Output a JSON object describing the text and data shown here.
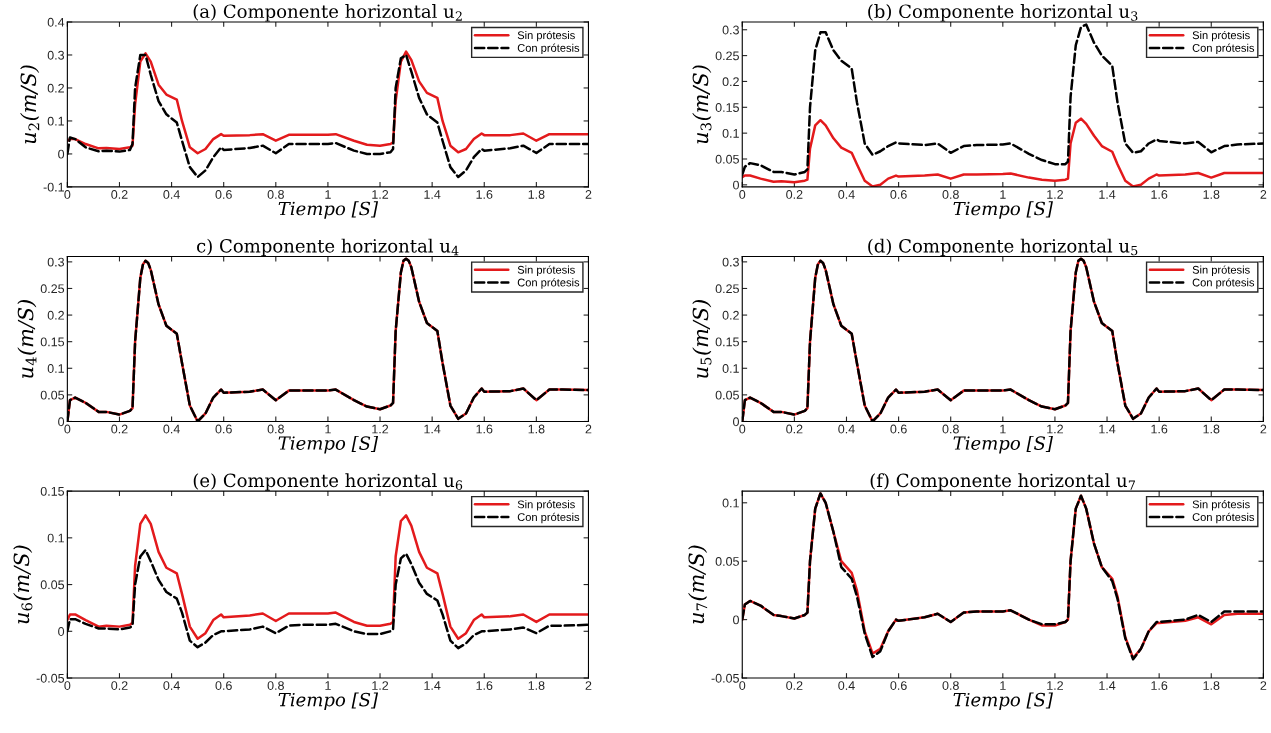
{
  "chart_data": [
    {
      "type": "line",
      "title": "(a) Componente horizontal u$_{2}$",
      "xlabel": "Tiempo [S]",
      "ylabel": "u$_{2}$(m/S)",
      "legend": "top right",
      "xlim": [
        0,
        2
      ],
      "ylim": [
        -0.1,
        0.4
      ],
      "xticks": [
        0,
        0.2,
        0.4,
        0.6,
        0.8,
        1,
        1.2,
        1.4,
        1.6,
        1.8,
        2
      ],
      "yticks": [
        -0.1,
        0,
        0.1,
        0.2,
        0.3,
        0.4
      ],
      "x": [
        0,
        0.01,
        0.03,
        0.07,
        0.12,
        0.15,
        0.2,
        0.24,
        0.25,
        0.26,
        0.28,
        0.3,
        0.32,
        0.35,
        0.38,
        0.42,
        0.44,
        0.47,
        0.5,
        0.53,
        0.56,
        0.59,
        0.6,
        0.7,
        0.75,
        0.8,
        0.85,
        0.9,
        1.0,
        1.03,
        1.1,
        1.15,
        1.2,
        1.24,
        1.25,
        1.26,
        1.28,
        1.3,
        1.32,
        1.35,
        1.38,
        1.42,
        1.44,
        1.47,
        1.5,
        1.53,
        1.56,
        1.59,
        1.6,
        1.7,
        1.75,
        1.8,
        1.85,
        1.9,
        2.0
      ],
      "series": [
        {
          "name": "Sin prótesis",
          "color": "#e31a1c",
          "line_style": "solid",
          "values": [
            0.04,
            0.045,
            0.045,
            0.03,
            0.017,
            0.018,
            0.015,
            0.02,
            0.025,
            0.15,
            0.28,
            0.305,
            0.28,
            0.21,
            0.18,
            0.165,
            0.1,
            0.02,
            0.002,
            0.015,
            0.045,
            0.06,
            0.055,
            0.057,
            0.06,
            0.04,
            0.058,
            0.058,
            0.058,
            0.06,
            0.04,
            0.028,
            0.025,
            0.03,
            0.035,
            0.16,
            0.28,
            0.31,
            0.285,
            0.22,
            0.185,
            0.17,
            0.1,
            0.025,
            0.005,
            0.015,
            0.045,
            0.062,
            0.057,
            0.057,
            0.062,
            0.04,
            0.06,
            0.06,
            0.06
          ]
        },
        {
          "name": "Con prótesis",
          "color": "#000000",
          "line_style": "dashed",
          "values": [
            0.0,
            0.05,
            0.045,
            0.02,
            0.008,
            0.01,
            0.007,
            0.012,
            0.03,
            0.2,
            0.3,
            0.3,
            0.24,
            0.16,
            0.12,
            0.095,
            0.04,
            -0.04,
            -0.07,
            -0.05,
            -0.01,
            0.02,
            0.012,
            0.018,
            0.025,
            0.002,
            0.03,
            0.03,
            0.03,
            0.033,
            0.01,
            0.0,
            0.0,
            0.005,
            0.015,
            0.2,
            0.29,
            0.3,
            0.25,
            0.17,
            0.12,
            0.095,
            0.04,
            -0.04,
            -0.07,
            -0.05,
            -0.01,
            0.015,
            0.01,
            0.017,
            0.025,
            0.003,
            0.03,
            0.03,
            0.03
          ]
        }
      ]
    },
    {
      "type": "line",
      "title": "(b) Componente horizontal u$_{3}$",
      "xlabel": "Tiempo [S]",
      "ylabel": "u$_{3}$(m/S)",
      "legend": "top right",
      "xlim": [
        0,
        2
      ],
      "ylim": [
        -0.004,
        0.315
      ],
      "xticks": [
        0,
        0.2,
        0.4,
        0.6,
        0.8,
        1,
        1.2,
        1.4,
        1.6,
        1.8,
        2
      ],
      "yticks": [
        0,
        0.05,
        0.1,
        0.15,
        0.2,
        0.25,
        0.3
      ],
      "x": [
        0,
        0.01,
        0.03,
        0.07,
        0.12,
        0.15,
        0.2,
        0.24,
        0.25,
        0.26,
        0.28,
        0.3,
        0.32,
        0.35,
        0.38,
        0.42,
        0.44,
        0.47,
        0.5,
        0.53,
        0.56,
        0.59,
        0.6,
        0.7,
        0.75,
        0.8,
        0.85,
        0.9,
        1.0,
        1.03,
        1.1,
        1.15,
        1.2,
        1.24,
        1.25,
        1.26,
        1.28,
        1.3,
        1.32,
        1.35,
        1.38,
        1.42,
        1.44,
        1.47,
        1.5,
        1.53,
        1.56,
        1.59,
        1.6,
        1.7,
        1.75,
        1.8,
        1.85,
        1.9,
        2.0
      ],
      "series": [
        {
          "name": "Sin prótesis",
          "color": "#e31a1c",
          "line_style": "solid",
          "values": [
            0.015,
            0.018,
            0.018,
            0.012,
            0.006,
            0.007,
            0.005,
            0.008,
            0.01,
            0.07,
            0.115,
            0.125,
            0.115,
            0.09,
            0.072,
            0.062,
            0.04,
            0.008,
            -0.003,
            0.0,
            0.012,
            0.018,
            0.016,
            0.018,
            0.02,
            0.012,
            0.02,
            0.02,
            0.021,
            0.022,
            0.014,
            0.01,
            0.008,
            0.01,
            0.012,
            0.08,
            0.12,
            0.128,
            0.118,
            0.095,
            0.075,
            0.064,
            0.04,
            0.008,
            -0.003,
            0.0,
            0.012,
            0.02,
            0.018,
            0.02,
            0.023,
            0.014,
            0.023,
            0.023,
            0.023
          ]
        },
        {
          "name": "Con prótesis",
          "color": "#000000",
          "line_style": "dashed",
          "values": [
            0.02,
            0.035,
            0.042,
            0.038,
            0.025,
            0.025,
            0.02,
            0.025,
            0.03,
            0.15,
            0.26,
            0.295,
            0.295,
            0.26,
            0.24,
            0.225,
            0.16,
            0.08,
            0.058,
            0.065,
            0.075,
            0.082,
            0.08,
            0.077,
            0.08,
            0.062,
            0.075,
            0.077,
            0.078,
            0.08,
            0.06,
            0.048,
            0.04,
            0.04,
            0.045,
            0.17,
            0.27,
            0.305,
            0.31,
            0.275,
            0.25,
            0.23,
            0.16,
            0.08,
            0.062,
            0.065,
            0.08,
            0.088,
            0.085,
            0.08,
            0.083,
            0.063,
            0.075,
            0.078,
            0.08
          ]
        }
      ]
    },
    {
      "type": "line",
      "title": "c) Componente horizontal u$_{4}$",
      "xlabel": "Tiempo [S]",
      "ylabel": "u$_{4}$(m/S)",
      "legend": "top right",
      "xlim": [
        0,
        2
      ],
      "ylim": [
        0,
        0.31
      ],
      "xticks": [
        0,
        0.2,
        0.4,
        0.6,
        0.8,
        1,
        1.2,
        1.4,
        1.6,
        1.8,
        2
      ],
      "yticks": [
        0,
        0.05,
        0.1,
        0.15,
        0.2,
        0.25,
        0.3
      ],
      "x": [
        0,
        0.01,
        0.03,
        0.07,
        0.12,
        0.15,
        0.2,
        0.24,
        0.25,
        0.26,
        0.28,
        0.29,
        0.3,
        0.31,
        0.32,
        0.35,
        0.38,
        0.42,
        0.44,
        0.47,
        0.5,
        0.53,
        0.56,
        0.59,
        0.6,
        0.7,
        0.75,
        0.8,
        0.85,
        0.9,
        1.0,
        1.03,
        1.1,
        1.15,
        1.2,
        1.24,
        1.25,
        1.26,
        1.28,
        1.29,
        1.3,
        1.31,
        1.32,
        1.35,
        1.38,
        1.42,
        1.44,
        1.47,
        1.5,
        1.53,
        1.56,
        1.59,
        1.6,
        1.7,
        1.75,
        1.8,
        1.85,
        1.9,
        2.0
      ],
      "series": [
        {
          "name": "Sin prótesis",
          "color": "#e31a1c",
          "line_style": "solid",
          "values": [
            0.0,
            0.04,
            0.045,
            0.035,
            0.018,
            0.018,
            0.013,
            0.02,
            0.025,
            0.15,
            0.27,
            0.295,
            0.302,
            0.298,
            0.285,
            0.22,
            0.18,
            0.165,
            0.11,
            0.03,
            0.0,
            0.015,
            0.045,
            0.06,
            0.054,
            0.056,
            0.06,
            0.04,
            0.058,
            0.058,
            0.058,
            0.06,
            0.04,
            0.028,
            0.023,
            0.03,
            0.035,
            0.17,
            0.28,
            0.302,
            0.306,
            0.302,
            0.29,
            0.225,
            0.185,
            0.17,
            0.11,
            0.03,
            0.005,
            0.015,
            0.045,
            0.062,
            0.056,
            0.057,
            0.062,
            0.04,
            0.06,
            0.06,
            0.059
          ]
        },
        {
          "name": "Con prótesis",
          "color": "#000000",
          "line_style": "dashed",
          "values": [
            0.0,
            0.04,
            0.045,
            0.035,
            0.018,
            0.018,
            0.013,
            0.02,
            0.025,
            0.15,
            0.27,
            0.295,
            0.302,
            0.298,
            0.285,
            0.22,
            0.18,
            0.165,
            0.11,
            0.03,
            0.0,
            0.015,
            0.045,
            0.06,
            0.054,
            0.056,
            0.06,
            0.04,
            0.058,
            0.058,
            0.058,
            0.06,
            0.04,
            0.028,
            0.023,
            0.03,
            0.035,
            0.17,
            0.28,
            0.302,
            0.306,
            0.302,
            0.29,
            0.225,
            0.185,
            0.17,
            0.11,
            0.03,
            0.005,
            0.015,
            0.045,
            0.062,
            0.056,
            0.057,
            0.062,
            0.04,
            0.06,
            0.06,
            0.059
          ]
        }
      ]
    },
    {
      "type": "line",
      "title": "(d) Componente horizontal u$_{5}$",
      "xlabel": "Tiempo [S]",
      "ylabel": "u$_{5}$(m/S)",
      "legend": "top right",
      "xlim": [
        0,
        2
      ],
      "ylim": [
        0,
        0.31
      ],
      "xticks": [
        0,
        0.2,
        0.4,
        0.6,
        0.8,
        1,
        1.2,
        1.4,
        1.6,
        1.8,
        2
      ],
      "yticks": [
        0,
        0.05,
        0.1,
        0.15,
        0.2,
        0.25,
        0.3
      ],
      "x": [
        0,
        0.01,
        0.03,
        0.07,
        0.12,
        0.15,
        0.2,
        0.24,
        0.25,
        0.26,
        0.28,
        0.29,
        0.3,
        0.31,
        0.32,
        0.35,
        0.38,
        0.42,
        0.44,
        0.47,
        0.5,
        0.53,
        0.56,
        0.59,
        0.6,
        0.7,
        0.75,
        0.8,
        0.85,
        0.9,
        1.0,
        1.03,
        1.1,
        1.15,
        1.2,
        1.24,
        1.25,
        1.26,
        1.28,
        1.29,
        1.3,
        1.31,
        1.32,
        1.35,
        1.38,
        1.42,
        1.44,
        1.47,
        1.5,
        1.53,
        1.56,
        1.59,
        1.6,
        1.7,
        1.75,
        1.8,
        1.85,
        1.9,
        2.0
      ],
      "series": [
        {
          "name": "Sin prótesis",
          "color": "#e31a1c",
          "line_style": "solid",
          "values": [
            0.0,
            0.04,
            0.045,
            0.035,
            0.018,
            0.018,
            0.013,
            0.02,
            0.025,
            0.15,
            0.27,
            0.295,
            0.302,
            0.298,
            0.285,
            0.22,
            0.18,
            0.165,
            0.11,
            0.03,
            0.0,
            0.015,
            0.045,
            0.06,
            0.054,
            0.056,
            0.06,
            0.04,
            0.058,
            0.058,
            0.058,
            0.06,
            0.04,
            0.028,
            0.023,
            0.03,
            0.035,
            0.17,
            0.28,
            0.302,
            0.306,
            0.302,
            0.29,
            0.225,
            0.185,
            0.17,
            0.11,
            0.03,
            0.005,
            0.015,
            0.045,
            0.062,
            0.056,
            0.057,
            0.062,
            0.04,
            0.06,
            0.06,
            0.059
          ]
        },
        {
          "name": "Con prótesis",
          "color": "#000000",
          "line_style": "dashed",
          "values": [
            0.0,
            0.04,
            0.045,
            0.035,
            0.018,
            0.018,
            0.013,
            0.02,
            0.025,
            0.15,
            0.27,
            0.295,
            0.302,
            0.298,
            0.285,
            0.22,
            0.18,
            0.165,
            0.11,
            0.03,
            0.0,
            0.015,
            0.045,
            0.06,
            0.054,
            0.056,
            0.06,
            0.04,
            0.058,
            0.058,
            0.058,
            0.06,
            0.04,
            0.028,
            0.023,
            0.03,
            0.035,
            0.17,
            0.28,
            0.302,
            0.306,
            0.302,
            0.29,
            0.225,
            0.185,
            0.17,
            0.11,
            0.03,
            0.005,
            0.015,
            0.045,
            0.062,
            0.056,
            0.057,
            0.062,
            0.04,
            0.06,
            0.06,
            0.059
          ]
        }
      ]
    },
    {
      "type": "line",
      "title": "(e) Componente horizontal u$_{6}$",
      "xlabel": "Tiempo [S]",
      "ylabel": "u$_{6}$(m/S)",
      "legend": "top right",
      "xlim": [
        0,
        2
      ],
      "ylim": [
        -0.05,
        0.15
      ],
      "xticks": [
        0,
        0.2,
        0.4,
        0.6,
        0.8,
        1,
        1.2,
        1.4,
        1.6,
        1.8,
        2
      ],
      "yticks": [
        -0.05,
        0,
        0.05,
        0.1,
        0.15
      ],
      "x": [
        0,
        0.01,
        0.03,
        0.07,
        0.12,
        0.15,
        0.2,
        0.24,
        0.25,
        0.26,
        0.28,
        0.3,
        0.32,
        0.35,
        0.38,
        0.42,
        0.44,
        0.47,
        0.5,
        0.53,
        0.56,
        0.59,
        0.6,
        0.7,
        0.75,
        0.8,
        0.85,
        0.9,
        1.0,
        1.03,
        1.1,
        1.15,
        1.2,
        1.24,
        1.25,
        1.26,
        1.28,
        1.3,
        1.32,
        1.35,
        1.38,
        1.42,
        1.44,
        1.47,
        1.5,
        1.53,
        1.56,
        1.59,
        1.6,
        1.7,
        1.75,
        1.8,
        1.85,
        1.9,
        2.0
      ],
      "series": [
        {
          "name": "Sin prótesis",
          "color": "#e31a1c",
          "line_style": "solid",
          "values": [
            0.012,
            0.018,
            0.018,
            0.012,
            0.005,
            0.006,
            0.005,
            0.007,
            0.009,
            0.07,
            0.115,
            0.124,
            0.115,
            0.085,
            0.068,
            0.062,
            0.04,
            0.005,
            -0.008,
            -0.002,
            0.012,
            0.018,
            0.015,
            0.017,
            0.019,
            0.011,
            0.019,
            0.019,
            0.019,
            0.02,
            0.01,
            0.006,
            0.006,
            0.008,
            0.01,
            0.08,
            0.118,
            0.124,
            0.113,
            0.085,
            0.068,
            0.062,
            0.04,
            0.005,
            -0.008,
            -0.002,
            0.012,
            0.018,
            0.015,
            0.016,
            0.018,
            0.01,
            0.018,
            0.018,
            0.018
          ]
        },
        {
          "name": "Con prótesis",
          "color": "#000000",
          "line_style": "dashed",
          "values": [
            0.0,
            0.013,
            0.013,
            0.008,
            0.003,
            0.003,
            0.002,
            0.004,
            0.006,
            0.05,
            0.08,
            0.087,
            0.075,
            0.055,
            0.042,
            0.035,
            0.02,
            -0.01,
            -0.017,
            -0.012,
            -0.004,
            0.0,
            0.0,
            0.002,
            0.005,
            -0.002,
            0.006,
            0.007,
            0.007,
            0.008,
            0.0,
            -0.003,
            -0.003,
            0.0,
            0.002,
            0.05,
            0.078,
            0.083,
            0.072,
            0.052,
            0.04,
            0.033,
            0.018,
            -0.01,
            -0.018,
            -0.013,
            -0.004,
            0.0,
            0.0,
            0.002,
            0.004,
            -0.002,
            0.006,
            0.006,
            0.007
          ]
        }
      ]
    },
    {
      "type": "line",
      "title": "(f) Componente horizontal u$_{7}$",
      "xlabel": "Tiempo [S]",
      "ylabel": "u$_{7}$(m/S)",
      "legend": "top right",
      "xlim": [
        0,
        2
      ],
      "ylim": [
        -0.05,
        0.11
      ],
      "xticks": [
        0,
        0.2,
        0.4,
        0.6,
        0.8,
        1,
        1.2,
        1.4,
        1.6,
        1.8,
        2
      ],
      "yticks": [
        -0.05,
        0,
        0.05,
        0.1
      ],
      "x": [
        0,
        0.01,
        0.03,
        0.07,
        0.12,
        0.15,
        0.2,
        0.24,
        0.25,
        0.26,
        0.28,
        0.3,
        0.32,
        0.35,
        0.38,
        0.42,
        0.44,
        0.47,
        0.5,
        0.53,
        0.56,
        0.59,
        0.6,
        0.7,
        0.75,
        0.8,
        0.85,
        0.9,
        1.0,
        1.03,
        1.1,
        1.15,
        1.2,
        1.24,
        1.25,
        1.26,
        1.28,
        1.3,
        1.32,
        1.35,
        1.38,
        1.42,
        1.44,
        1.47,
        1.5,
        1.53,
        1.56,
        1.59,
        1.6,
        1.7,
        1.75,
        1.8,
        1.85,
        1.9,
        2.0
      ],
      "series": [
        {
          "name": "Sin prótesis",
          "color": "#e31a1c",
          "line_style": "solid",
          "values": [
            0.0,
            0.013,
            0.016,
            0.012,
            0.004,
            0.003,
            0.001,
            0.004,
            0.006,
            0.05,
            0.095,
            0.108,
            0.1,
            0.075,
            0.05,
            0.04,
            0.025,
            -0.01,
            -0.029,
            -0.025,
            -0.01,
            0.0,
            -0.001,
            0.002,
            0.005,
            -0.002,
            0.006,
            0.007,
            0.007,
            0.008,
            0.0,
            -0.005,
            -0.005,
            -0.002,
            0.0,
            0.05,
            0.095,
            0.106,
            0.095,
            0.065,
            0.045,
            0.035,
            0.02,
            -0.015,
            -0.033,
            -0.025,
            -0.01,
            -0.003,
            -0.003,
            -0.001,
            0.002,
            -0.004,
            0.004,
            0.005,
            0.005
          ]
        },
        {
          "name": "Con prótesis",
          "color": "#000000",
          "line_style": "dashed",
          "values": [
            0.0,
            0.013,
            0.016,
            0.012,
            0.004,
            0.003,
            0.001,
            0.004,
            0.006,
            0.05,
            0.095,
            0.108,
            0.1,
            0.075,
            0.045,
            0.035,
            0.02,
            -0.012,
            -0.032,
            -0.027,
            -0.01,
            0.0,
            -0.001,
            0.002,
            0.005,
            -0.002,
            0.006,
            0.007,
            0.007,
            0.008,
            0.0,
            -0.004,
            -0.004,
            -0.002,
            0.0,
            0.05,
            0.095,
            0.106,
            0.095,
            0.065,
            0.045,
            0.033,
            0.018,
            -0.016,
            -0.034,
            -0.025,
            -0.01,
            -0.002,
            -0.002,
            0.0,
            0.004,
            -0.002,
            0.007,
            0.007,
            0.007
          ]
        }
      ]
    }
  ]
}
